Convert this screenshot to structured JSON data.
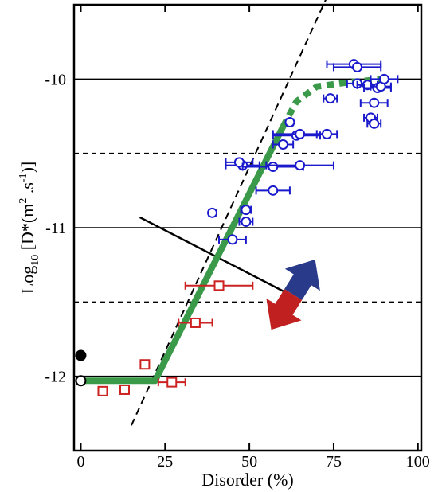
{
  "chart_data": {
    "type": "scatter",
    "title": "",
    "xlabel": "Disorder (%)",
    "ylabel": "Log10 [D*(m2.s-1)]",
    "ylabel_parts": {
      "log": "Log",
      "log_sub": "10",
      "open": " [D*(m",
      "m_sup": "2",
      "dot_s": " .s",
      "s_sup": "-1",
      "close": ")]"
    },
    "xlim": [
      -2,
      101
    ],
    "ylim": [
      -12.5,
      -9.5
    ],
    "x_ticks": [
      0,
      25,
      50,
      75,
      100
    ],
    "x_tick_labels": [
      "0",
      "25",
      "50",
      "75",
      "100"
    ],
    "y_ticks": [
      -10,
      -11,
      -12
    ],
    "y_tick_labels": [
      "-10",
      "-11",
      "-12"
    ],
    "grid": {
      "solid_y": [
        -10,
        -11,
        -12
      ],
      "dashed_y": [
        -10.5,
        -11.5
      ]
    },
    "colors": {
      "red": "#cc2222",
      "blue": "#1a1acc",
      "green": "#3a9a4a",
      "black": "#000000",
      "arrow_up": "#2a3a8a",
      "arrow_down": "#c02020"
    },
    "series": [
      {
        "marker": "square",
        "color": "#cc2222",
        "points": [
          {
            "x": 6.5,
            "y": -12.1,
            "xerr": 0.8
          },
          {
            "x": 13,
            "y": -12.09,
            "xerr": 0.8
          },
          {
            "x": 19,
            "y": -11.92,
            "xerr": 0.8
          },
          {
            "x": 27,
            "y": -12.04,
            "xerr": 4
          },
          {
            "x": 34,
            "y": -11.64,
            "xerr": 5
          },
          {
            "x": 41,
            "y": -11.39,
            "xerr": 10
          }
        ]
      },
      {
        "marker": "circle",
        "color": "#1a1acc",
        "points": [
          {
            "x": 39,
            "y": -10.9,
            "xerr": 1
          },
          {
            "x": 45,
            "y": -11.08,
            "xerr": 4
          },
          {
            "x": 49,
            "y": -10.96,
            "xerr": 2
          },
          {
            "x": 49,
            "y": -10.88,
            "xerr": 1.5
          },
          {
            "x": 48,
            "y": -10.58,
            "xerr": 5
          },
          {
            "x": 47,
            "y": -10.56,
            "xerr": 4
          },
          {
            "x": 57,
            "y": -10.75,
            "xerr": 5
          },
          {
            "x": 57,
            "y": -10.59,
            "xerr": 9
          },
          {
            "x": 65,
            "y": -10.58,
            "xerr": 10
          },
          {
            "x": 60,
            "y": -10.44,
            "xerr": 3
          },
          {
            "x": 64,
            "y": -10.38,
            "xerr": 7
          },
          {
            "x": 65,
            "y": -10.37,
            "xerr": 8
          },
          {
            "x": 73,
            "y": -10.37,
            "xerr": 3
          },
          {
            "x": 62,
            "y": -10.29,
            "xerr": 1
          },
          {
            "x": 74,
            "y": -10.13,
            "xerr": 2
          },
          {
            "x": 81,
            "y": -9.9,
            "xerr": 8
          },
          {
            "x": 82,
            "y": -9.92,
            "xerr": 7
          },
          {
            "x": 82,
            "y": -10.03,
            "xerr": 3
          },
          {
            "x": 85,
            "y": -10.04,
            "xerr": 3
          },
          {
            "x": 88,
            "y": -10.06,
            "xerr": 4
          },
          {
            "x": 89,
            "y": -10.05,
            "xerr": 3
          },
          {
            "x": 90,
            "y": -10.0,
            "xerr": 4
          },
          {
            "x": 87,
            "y": -10.16,
            "xerr": 4
          },
          {
            "x": 86,
            "y": -10.26,
            "xerr": 2
          },
          {
            "x": 87,
            "y": -10.3,
            "xerr": 2
          }
        ]
      }
    ],
    "extra_points": [
      {
        "x": 0,
        "y": -11.86,
        "filled": true
      },
      {
        "x": 0,
        "y": -12.03,
        "filled": false
      }
    ],
    "fit_green": {
      "solid": [
        [
          0,
          -12.03
        ],
        [
          22,
          -12.03
        ],
        [
          60,
          -10.32
        ]
      ],
      "dotted": [
        [
          60,
          -10.32
        ],
        [
          64,
          -10.15
        ],
        [
          70,
          -10.05
        ],
        [
          80,
          -10.02
        ],
        [
          90,
          -10.0
        ]
      ]
    },
    "dashed_line": [
      [
        15,
        -12.33
      ],
      [
        76,
        -9.3
      ]
    ],
    "black_line": [
      [
        17.5,
        -10.93
      ],
      [
        62,
        -11.45
      ]
    ],
    "arrow": {
      "center": [
        63,
        -11.45
      ]
    }
  }
}
